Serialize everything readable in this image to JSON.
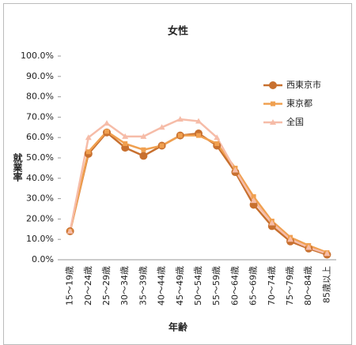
{
  "chart_data": {
    "type": "line",
    "title": "女性",
    "x_label": "年齢",
    "y_label": "就業率",
    "categories": [
      "15～19歳",
      "20～24歳",
      "25～29歳",
      "30～34歳",
      "35～39歳",
      "40～44歳",
      "45～49歳",
      "50～54歳",
      "55～59歳",
      "60～64歳",
      "65～69歳",
      "70～74歳",
      "75～79歳",
      "80～84歳",
      "85歳以上"
    ],
    "series": [
      {
        "name": "西東京市",
        "color": "#c8702f",
        "marker": "circle",
        "values": [
          14,
          52,
          62.5,
          55,
          51,
          56,
          61,
          62,
          56,
          43,
          27,
          16.5,
          9,
          5.5,
          2.5
        ]
      },
      {
        "name": "東京都",
        "color": "#f0a050",
        "marker": "square",
        "values": [
          14,
          53,
          63,
          57,
          54,
          56,
          61,
          61,
          57,
          45,
          31,
          19,
          11,
          7,
          3.5
        ]
      },
      {
        "name": "全国",
        "color": "#f6bca8",
        "marker": "triangle",
        "values": [
          14,
          60,
          67,
          60.5,
          60.5,
          65,
          69,
          68,
          60,
          44,
          29,
          18,
          10,
          6,
          3
        ]
      }
    ],
    "ylim": [
      0,
      100
    ],
    "yticks": [
      {
        "value": 0,
        "label": "0.0%"
      },
      {
        "value": 10,
        "label": "10.0%"
      },
      {
        "value": 20,
        "label": "20.0%"
      },
      {
        "value": 30,
        "label": "30.0%"
      },
      {
        "value": 40,
        "label": "40.0%"
      },
      {
        "value": 50,
        "label": "50.0%"
      },
      {
        "value": 60,
        "label": "60.0%"
      },
      {
        "value": 70,
        "label": "70.0%"
      },
      {
        "value": 80,
        "label": "80.0%"
      },
      {
        "value": 90,
        "label": "90.0%"
      },
      {
        "value": 100,
        "label": "100.0%"
      }
    ],
    "grid": false,
    "legend": "right"
  }
}
